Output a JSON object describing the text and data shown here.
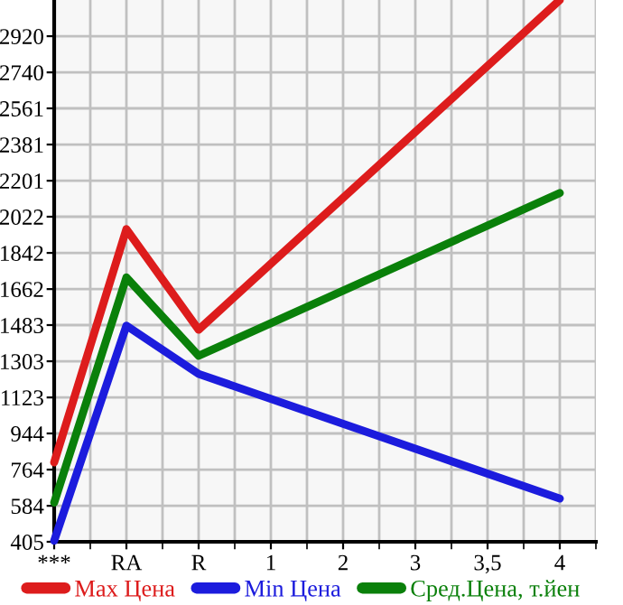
{
  "chart_data": {
    "type": "line",
    "categories": [
      "***",
      "RA",
      "R",
      "1",
      "2",
      "3",
      "3,5",
      "4"
    ],
    "series": [
      {
        "name": "Max Цена",
        "color": "#dd1c1c",
        "values": [
          800,
          1960,
          1460,
          null,
          null,
          null,
          null,
          3100
        ]
      },
      {
        "name": "Min Цена",
        "color": "#1c1cdd",
        "values": [
          410,
          1480,
          1240,
          null,
          null,
          null,
          null,
          620
        ]
      },
      {
        "name": "Сред.Цена, т.йен",
        "color": "#0a800a",
        "values": [
          600,
          1720,
          1330,
          null,
          null,
          null,
          null,
          2140
        ]
      }
    ],
    "ylim": [
      405,
      3100
    ],
    "yticks": [
      405,
      584,
      764,
      944,
      1123,
      1303,
      1483,
      1662,
      1842,
      2022,
      2201,
      2381,
      2561,
      2740,
      2920
    ],
    "grid": true,
    "legend": "bottom",
    "marker": "none",
    "line_style": "solid"
  }
}
